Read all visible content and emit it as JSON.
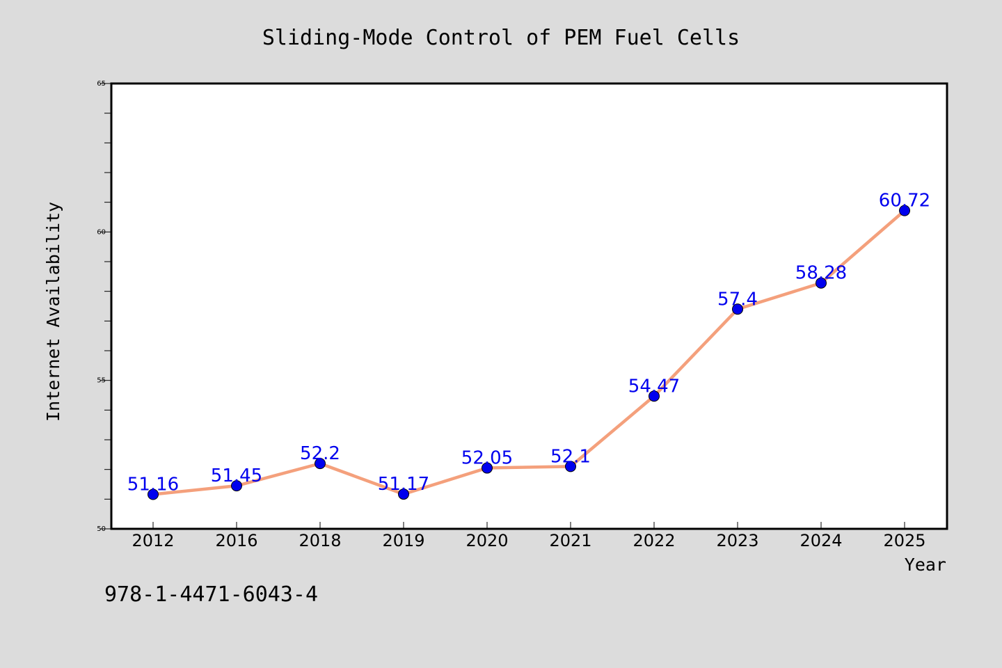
{
  "chart_data": {
    "type": "line",
    "title": "Sliding-Mode Control of PEM Fuel Cells",
    "xlabel": "Year",
    "ylabel": "Internet Availability",
    "categories": [
      "2012",
      "2016",
      "2018",
      "2019",
      "2020",
      "2021",
      "2022",
      "2023",
      "2024",
      "2025"
    ],
    "series": [
      {
        "values": [
          51.16,
          51.45,
          52.2,
          51.17,
          52.05,
          52.1,
          54.47,
          57.4,
          58.28,
          60.72
        ],
        "data_labels": [
          "51.16",
          "51.45",
          "52.2",
          "51.17",
          "52.05",
          "52.1",
          "54.47",
          "57.4",
          "58.28",
          "60.72"
        ]
      }
    ],
    "ylim": [
      50,
      65
    ],
    "yticks": [
      "50",
      "55",
      "60",
      "65"
    ],
    "grid": false,
    "legend": "none",
    "colors": {
      "line": "#f4a07c",
      "marker": "#0000ee",
      "data_label": "#0000ee",
      "background": "#dcdcdc",
      "plot_background": "#ffffff"
    }
  },
  "footer": {
    "isbn": "978-1-4471-6043-4"
  }
}
